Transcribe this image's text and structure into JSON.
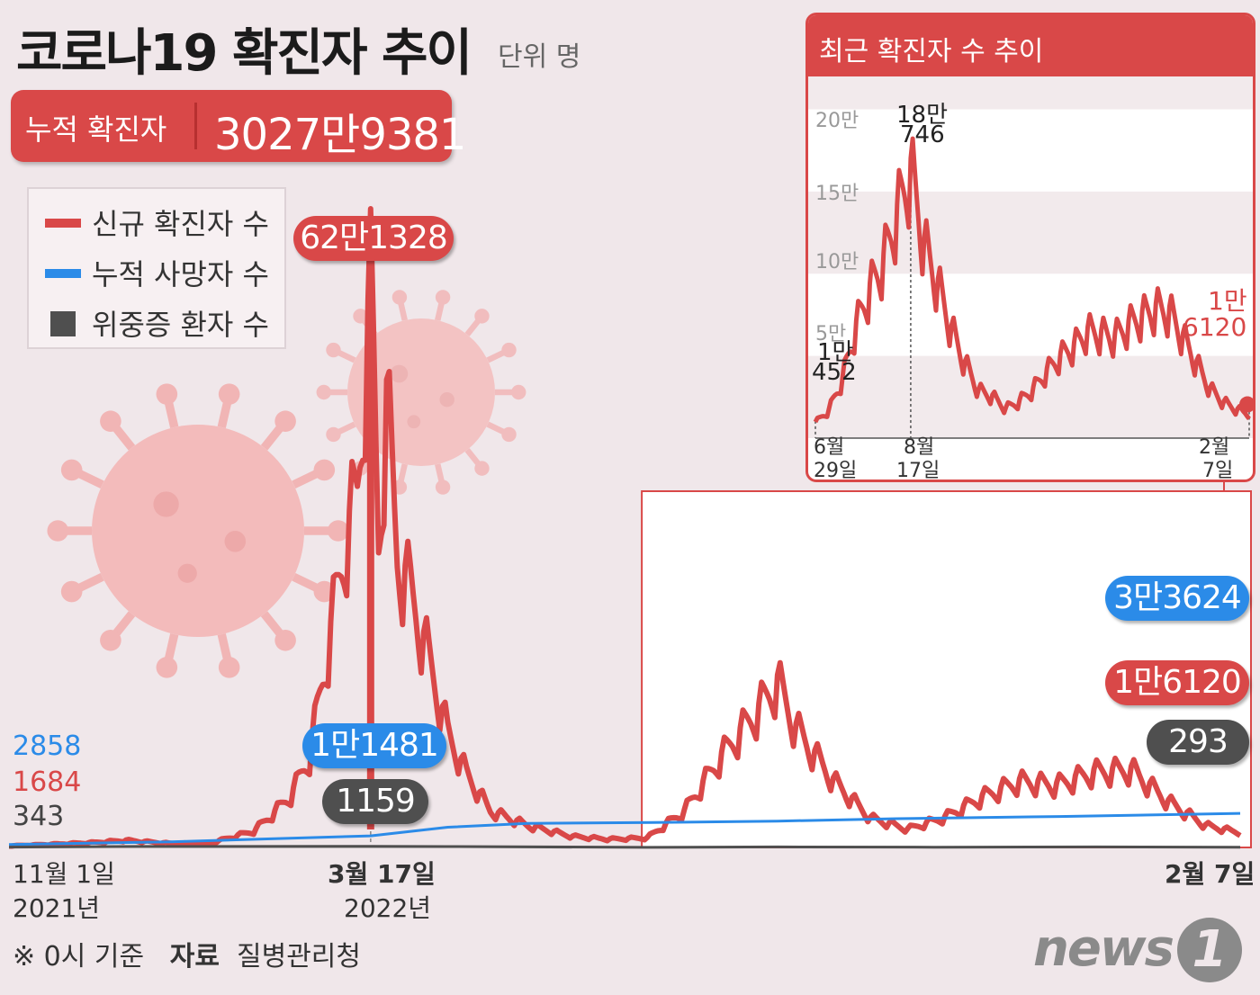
{
  "header": {
    "title": "코로나19 확진자 추이",
    "unit": "단위 명"
  },
  "cumulative": {
    "label": "누적 확진자",
    "value": "3027만9381"
  },
  "legend": [
    {
      "label": "신규 확진자 수",
      "color": "#d94848",
      "shape": "line"
    },
    {
      "label": "누적 사망자 수",
      "color": "#2b8be8",
      "shape": "line"
    },
    {
      "label": "위중증 환자 수",
      "color": "#4f4f4f",
      "shape": "square"
    }
  ],
  "chart_data": [
    {
      "type": "line",
      "xlabel": "",
      "ylabel": "",
      "x_ticks": [
        {
          "date": "2021-11-01",
          "label": "11월 1일",
          "year": "2021년"
        },
        {
          "date": "2022-03-17",
          "label": "3월 17일",
          "year": "2022년"
        },
        {
          "date": "2023-02-07",
          "label": "2월 7일",
          "year": ""
        }
      ],
      "x_range": [
        "2021-11-01",
        "2023-02-07"
      ],
      "y_range": [
        0,
        630000
      ],
      "start_labels": [
        {
          "series": "누적 사망자 수",
          "text": "2858"
        },
        {
          "series": "신규 확진자 수",
          "text": "1684"
        },
        {
          "series": "위중증 환자 수",
          "text": "343"
        }
      ],
      "peak_callouts": [
        {
          "series": "신규 확진자 수",
          "date": "2022-03-17",
          "text": "62만1328",
          "value": 621328
        },
        {
          "series": "누적 사망자 수",
          "date": "2022-03-17",
          "text": "1만1481",
          "value": 11481
        },
        {
          "series": "위중증 환자 수",
          "date": "2022-03-17",
          "text": "1159",
          "value": 1159
        }
      ],
      "end_callouts": [
        {
          "series": "누적 사망자 수",
          "date": "2023-02-07",
          "text": "3만3624",
          "value": 33624
        },
        {
          "series": "신규 확진자 수",
          "date": "2023-02-07",
          "text": "1만6120",
          "value": 16120
        },
        {
          "series": "위중증 환자 수",
          "date": "2023-02-07",
          "text": "293",
          "value": 293
        }
      ],
      "series": [
        {
          "name": "신규 확진자 수",
          "color": "#d94848",
          "points": [
            [
              "2021-11-01",
              1684
            ],
            [
              "2021-12-01",
              5100
            ],
            [
              "2021-12-15",
              7800
            ],
            [
              "2022-01-01",
              4400
            ],
            [
              "2022-01-15",
              4200
            ],
            [
              "2022-01-26",
              13000
            ],
            [
              "2022-02-01",
              18000
            ],
            [
              "2022-02-08",
              36000
            ],
            [
              "2022-02-15",
              57000
            ],
            [
              "2022-02-22",
              99000
            ],
            [
              "2022-03-01",
              219000
            ],
            [
              "2022-03-08",
              342000
            ],
            [
              "2022-03-12",
              383000
            ],
            [
              "2022-03-17",
              621328
            ],
            [
              "2022-03-20",
              334000
            ],
            [
              "2022-03-23",
              490000
            ],
            [
              "2022-03-27",
              318000
            ],
            [
              "2022-04-01",
              280000
            ],
            [
              "2022-04-08",
              205000
            ],
            [
              "2022-04-15",
              125000
            ],
            [
              "2022-04-22",
              81000
            ],
            [
              "2022-05-01",
              40000
            ],
            [
              "2022-05-15",
              24000
            ],
            [
              "2022-06-01",
              12000
            ],
            [
              "2022-06-15",
              9000
            ],
            [
              "2022-06-29",
              10452
            ],
            [
              "2022-07-13",
              40000
            ],
            [
              "2022-07-27",
              100000
            ],
            [
              "2022-08-10",
              151000
            ],
            [
              "2022-08-17",
              180746
            ],
            [
              "2022-08-24",
              130000
            ],
            [
              "2022-09-07",
              73000
            ],
            [
              "2022-09-21",
              32000
            ],
            [
              "2022-10-05",
              20000
            ],
            [
              "2022-10-19",
              33000
            ],
            [
              "2022-11-02",
              55000
            ],
            [
              "2022-11-16",
              72000
            ],
            [
              "2022-11-30",
              68000
            ],
            [
              "2022-12-14",
              82000
            ],
            [
              "2022-12-28",
              85000
            ],
            [
              "2023-01-11",
              50000
            ],
            [
              "2023-01-25",
              24000
            ],
            [
              "2023-02-07",
              16120
            ]
          ]
        },
        {
          "name": "누적 사망자 수",
          "color": "#2b8be8",
          "points": [
            [
              "2021-11-01",
              2858
            ],
            [
              "2022-01-01",
              5600
            ],
            [
              "2022-03-17",
              11481
            ],
            [
              "2022-04-15",
              20000
            ],
            [
              "2022-05-15",
              23800
            ],
            [
              "2022-07-01",
              24600
            ],
            [
              "2022-08-17",
              26000
            ],
            [
              "2022-10-01",
              28400
            ],
            [
              "2022-12-01",
              30500
            ],
            [
              "2023-02-07",
              33624
            ]
          ]
        },
        {
          "name": "위중증 환자 수",
          "color": "#4f4f4f",
          "points": [
            [
              "2021-11-01",
              343
            ],
            [
              "2021-12-20",
              1000
            ],
            [
              "2022-03-17",
              1159
            ],
            [
              "2022-04-15",
              900
            ],
            [
              "2022-06-29",
              100
            ],
            [
              "2022-08-17",
              500
            ],
            [
              "2022-10-15",
              250
            ],
            [
              "2022-12-15",
              550
            ],
            [
              "2023-02-07",
              293
            ]
          ]
        }
      ]
    },
    {
      "type": "line",
      "title": "최근 확진자 수 추이",
      "ylim": [
        0,
        220000
      ],
      "yticks": [
        {
          "value": 50000,
          "label": "5만"
        },
        {
          "value": 100000,
          "label": "10만"
        },
        {
          "value": 150000,
          "label": "15만"
        },
        {
          "value": 200000,
          "label": "20만"
        }
      ],
      "x_range": [
        "2022-06-29",
        "2023-02-07"
      ],
      "x_ticks": [
        {
          "date": "2022-06-29",
          "month": "6월",
          "day": "29일"
        },
        {
          "date": "2022-08-17",
          "month": "8월",
          "day": "17일"
        },
        {
          "date": "2023-02-07",
          "month": "2월",
          "day": "7일"
        }
      ],
      "callouts": [
        {
          "date": "2022-08-17",
          "line1": "18만",
          "line2": "746",
          "value": 180746
        },
        {
          "date": "2022-06-29",
          "line1": "1만",
          "line2": "452",
          "value": 10452
        },
        {
          "date": "2023-02-07",
          "line1": "1만",
          "line2": "6120",
          "value": 16120
        }
      ],
      "series": [
        {
          "name": "신규 확진자 수",
          "color": "#d94848",
          "points": [
            [
              "2022-06-29",
              10452
            ],
            [
              "2022-07-06",
              19000
            ],
            [
              "2022-07-13",
              40000
            ],
            [
              "2022-07-20",
              76000
            ],
            [
              "2022-07-27",
              100000
            ],
            [
              "2022-08-03",
              119000
            ],
            [
              "2022-08-10",
              151000
            ],
            [
              "2022-08-17",
              180746
            ],
            [
              "2022-08-24",
              130000
            ],
            [
              "2022-08-31",
              103000
            ],
            [
              "2022-09-07",
              73000
            ],
            [
              "2022-09-14",
              50000
            ],
            [
              "2022-09-21",
              32000
            ],
            [
              "2022-09-28",
              28000
            ],
            [
              "2022-10-05",
              20000
            ],
            [
              "2022-10-12",
              25000
            ],
            [
              "2022-10-19",
              33000
            ],
            [
              "2022-10-26",
              45000
            ],
            [
              "2022-11-02",
              55000
            ],
            [
              "2022-11-09",
              62000
            ],
            [
              "2022-11-16",
              72000
            ],
            [
              "2022-11-23",
              70000
            ],
            [
              "2022-11-30",
              68000
            ],
            [
              "2022-12-07",
              76000
            ],
            [
              "2022-12-14",
              82000
            ],
            [
              "2022-12-21",
              87000
            ],
            [
              "2022-12-28",
              85000
            ],
            [
              "2023-01-04",
              68000
            ],
            [
              "2023-01-11",
              50000
            ],
            [
              "2023-01-18",
              33000
            ],
            [
              "2023-01-25",
              24000
            ],
            [
              "2023-02-01",
              19000
            ],
            [
              "2023-02-07",
              16120
            ]
          ]
        }
      ]
    }
  ],
  "footer": {
    "note_prefix": "※ 0시 기준",
    "source_label": "자료",
    "source": "질병관리청"
  },
  "logo": {
    "text": "news",
    "mark": "1"
  }
}
